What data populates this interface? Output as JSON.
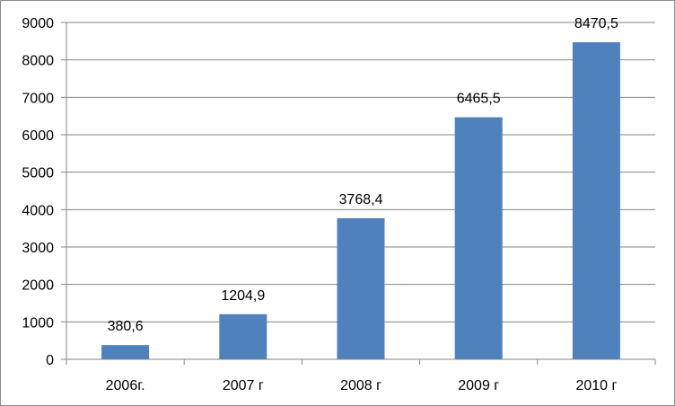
{
  "chart_data": {
    "type": "bar",
    "categories": [
      "2006г.",
      "2007 г",
      "2008 г",
      "2009 г",
      "2010 г"
    ],
    "values": [
      380.6,
      1204.9,
      3768.4,
      6465.5,
      8470.5
    ],
    "data_labels": [
      "380,6",
      "1204,9",
      "3768,4",
      "6465,5",
      "8470,5"
    ],
    "yticks": [
      0,
      1000,
      2000,
      3000,
      4000,
      5000,
      6000,
      7000,
      8000,
      9000
    ],
    "ylim": [
      0,
      9000
    ],
    "grid": true,
    "legend": "none",
    "title": "",
    "xlabel": "",
    "ylabel": "",
    "colors": {
      "bar": "#4f81bd",
      "grid": "#868686",
      "axis": "#868686"
    }
  }
}
